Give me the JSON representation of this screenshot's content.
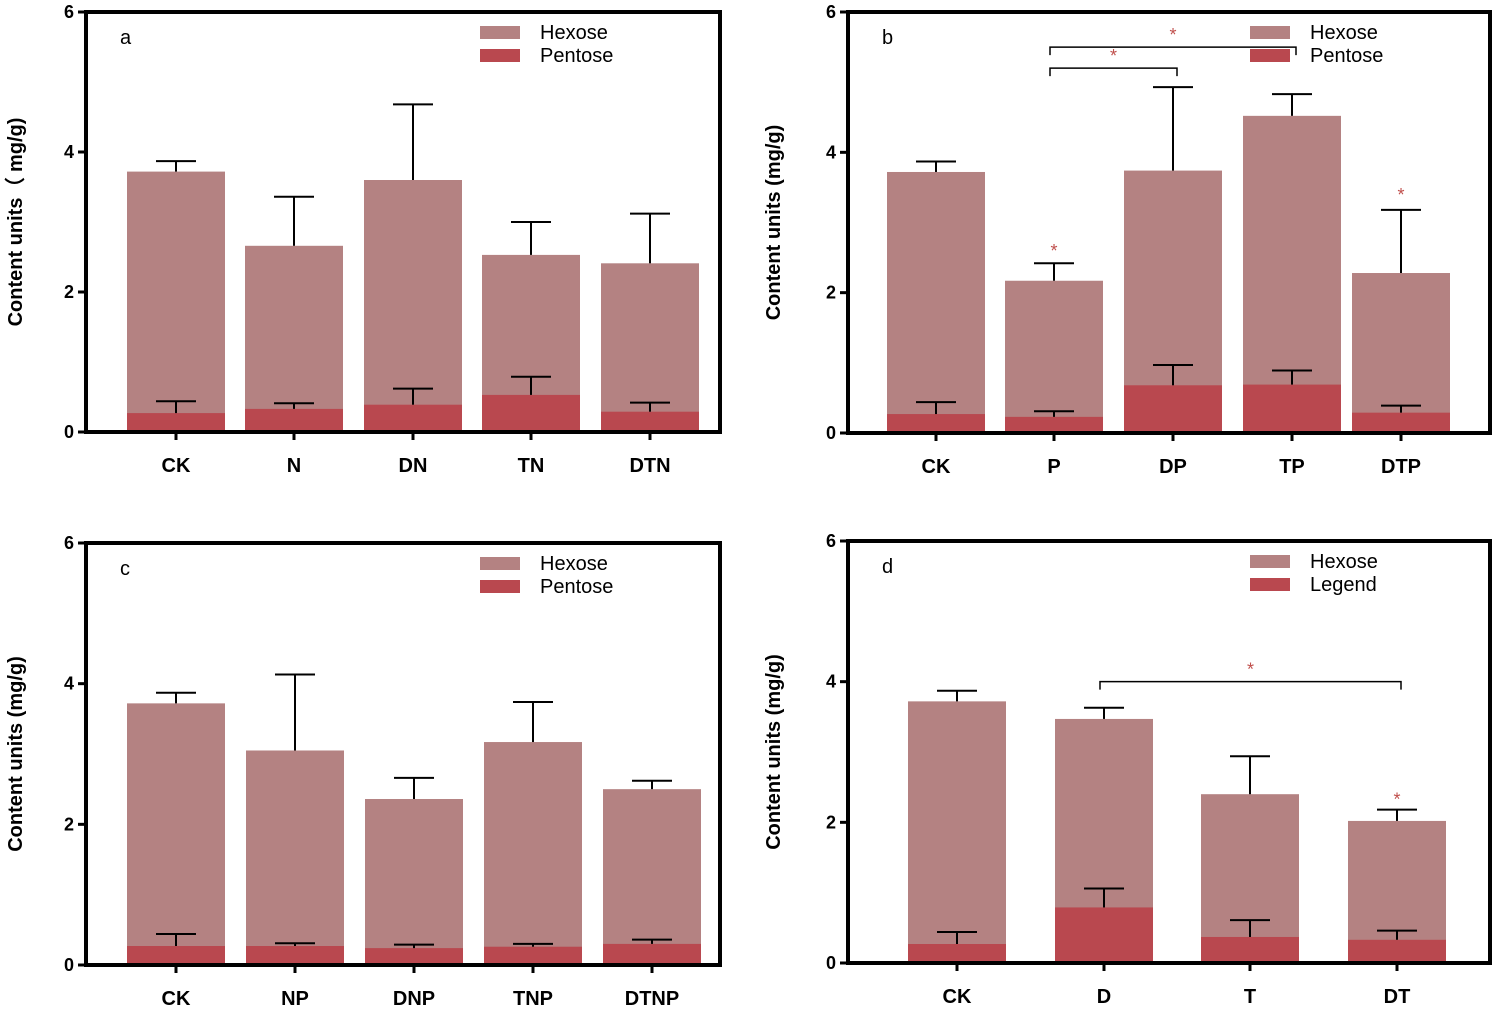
{
  "colors": {
    "hexose": "#b48282",
    "pentose": "#b9484f",
    "star": "#c0504d",
    "axis": "#000000"
  },
  "chart_data": [
    {
      "panel": "a",
      "type": "bar",
      "stacked": "overlay",
      "ylabel": "Content units（ mg/g)",
      "ylim": [
        0,
        6
      ],
      "yticks": [
        "0",
        "2",
        "4",
        "6"
      ],
      "categories": [
        "CK",
        "N",
        "DN",
        "TN",
        "DTN"
      ],
      "legend": [
        "Hexose",
        "Pentose"
      ],
      "legend_position": "top-right",
      "series": [
        {
          "name": "Hexose",
          "values": [
            3.72,
            2.66,
            3.6,
            2.53,
            2.41
          ],
          "errors": [
            0.15,
            0.7,
            1.08,
            0.47,
            0.71
          ]
        },
        {
          "name": "Pentose",
          "values": [
            0.27,
            0.33,
            0.39,
            0.53,
            0.29
          ],
          "errors": [
            0.17,
            0.08,
            0.23,
            0.26,
            0.13
          ]
        }
      ],
      "stars": [],
      "brackets": []
    },
    {
      "panel": "b",
      "type": "bar",
      "stacked": "overlay",
      "ylabel": "Content units (mg/g)",
      "ylim": [
        0,
        6
      ],
      "yticks": [
        "0",
        "2",
        "4",
        "6"
      ],
      "categories": [
        "CK",
        "P",
        "DP",
        "TP",
        "DTP"
      ],
      "legend": [
        "Hexose",
        "Pentose"
      ],
      "legend_position": "top-right",
      "series": [
        {
          "name": "Hexose",
          "values": [
            3.72,
            2.17,
            3.74,
            4.52,
            2.28
          ],
          "errors": [
            0.15,
            0.25,
            1.19,
            0.31,
            0.9
          ]
        },
        {
          "name": "Pentose",
          "values": [
            0.27,
            0.23,
            0.68,
            0.69,
            0.29
          ],
          "errors": [
            0.17,
            0.08,
            0.29,
            0.2,
            0.1
          ]
        }
      ],
      "stars": [
        {
          "category": 1,
          "y": 2.65,
          "text": "*"
        },
        {
          "category": 4,
          "y": 3.45,
          "text": "*"
        }
      ],
      "brackets": [
        {
          "from": 1,
          "to": 2,
          "y": 5.2,
          "text": "*"
        },
        {
          "from": 1,
          "to": 3,
          "y": 5.5,
          "text": "*"
        }
      ]
    },
    {
      "panel": "c",
      "type": "bar",
      "stacked": "overlay",
      "ylabel": "Content units (mg/g)",
      "ylim": [
        0,
        6
      ],
      "yticks": [
        "0",
        "2",
        "4",
        "6"
      ],
      "categories": [
        "CK",
        "NP",
        "DNP",
        "TNP",
        "DTNP"
      ],
      "legend": [
        "Hexose",
        "Pentose"
      ],
      "legend_position": "top-right",
      "series": [
        {
          "name": "Hexose",
          "values": [
            3.72,
            3.05,
            2.36,
            3.17,
            2.5
          ],
          "errors": [
            0.15,
            1.08,
            0.3,
            0.57,
            0.12
          ]
        },
        {
          "name": "Pentose",
          "values": [
            0.27,
            0.27,
            0.24,
            0.26,
            0.3
          ],
          "errors": [
            0.17,
            0.04,
            0.05,
            0.04,
            0.06
          ]
        }
      ],
      "stars": [],
      "brackets": []
    },
    {
      "panel": "d",
      "type": "bar",
      "stacked": "overlay",
      "ylabel": "Content units (mg/g)",
      "ylim": [
        0,
        6
      ],
      "yticks": [
        "0",
        "2",
        "4",
        "6"
      ],
      "categories": [
        "CK",
        "D",
        "T",
        "DT"
      ],
      "legend": [
        "Hexose",
        "Legend"
      ],
      "legend_position": "top-right",
      "series": [
        {
          "name": "Hexose",
          "values": [
            3.72,
            3.47,
            2.4,
            2.02
          ],
          "errors": [
            0.15,
            0.16,
            0.54,
            0.16
          ]
        },
        {
          "name": "Legend",
          "values": [
            0.27,
            0.79,
            0.37,
            0.33
          ],
          "errors": [
            0.17,
            0.27,
            0.24,
            0.13
          ]
        }
      ],
      "stars": [
        {
          "category": 3,
          "y": 2.38,
          "text": "*"
        }
      ],
      "brackets": [
        {
          "from": 1,
          "to": 3,
          "y": 4.0,
          "text": "*"
        }
      ]
    }
  ]
}
